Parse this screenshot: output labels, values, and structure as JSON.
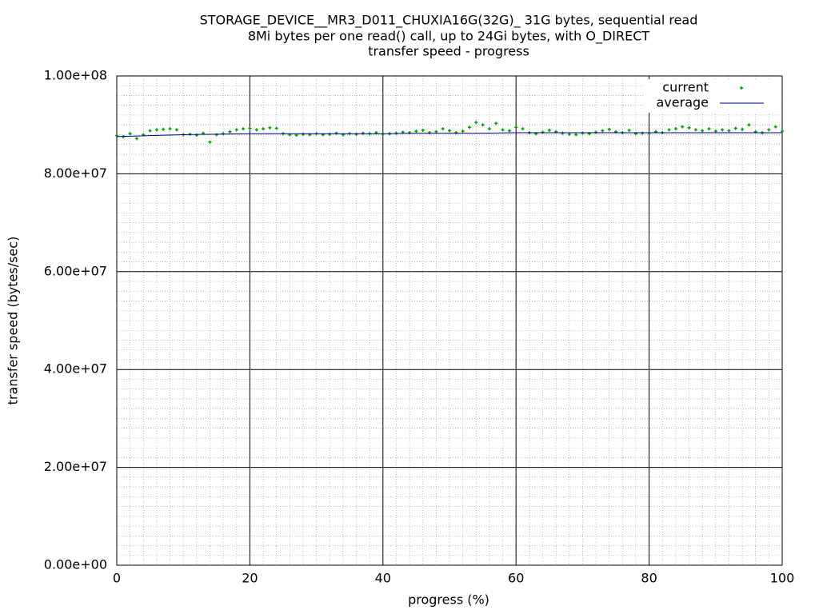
{
  "chart_data": {
    "type": "scatter",
    "title": "STORAGE_DEVICE__MR3_D011_CHUXIA16G(32G)_ 31G bytes, sequential read",
    "subtitle": "8Mi bytes per one read() call, up to 24Gi bytes, with O_DIRECT",
    "subtitle2": "transfer speed - progress",
    "x_label": "progress (%)",
    "y_label": "transfer speed (bytes/sec)",
    "xlim": [
      0,
      100
    ],
    "xticks": [
      0,
      20,
      40,
      60,
      80,
      100
    ],
    "ylim": [
      0,
      100000000
    ],
    "yticks": [
      {
        "value": 0,
        "label": "0.00e+00"
      },
      {
        "value": 20000000,
        "label": "2.00e+07"
      },
      {
        "value": 40000000,
        "label": "4.00e+07"
      },
      {
        "value": 60000000,
        "label": "6.00e+07"
      },
      {
        "value": 80000000,
        "label": "8.00e+07"
      },
      {
        "value": 100000000,
        "label": "1.00e+08"
      }
    ],
    "grid": true,
    "legend": "top-right",
    "series": [
      {
        "name": "current",
        "color": "#00a000",
        "style": "points",
        "x": [
          0,
          1,
          2,
          3,
          4,
          5,
          6,
          7,
          8,
          9,
          10,
          11,
          12,
          13,
          14,
          15,
          16,
          17,
          18,
          19,
          20,
          21,
          22,
          23,
          24,
          25,
          26,
          27,
          28,
          29,
          30,
          31,
          32,
          33,
          34,
          35,
          36,
          37,
          38,
          39,
          40,
          41,
          42,
          43,
          44,
          45,
          46,
          47,
          48,
          49,
          50,
          51,
          52,
          53,
          54,
          55,
          56,
          57,
          58,
          59,
          60,
          61,
          62,
          63,
          64,
          65,
          66,
          67,
          68,
          69,
          70,
          71,
          72,
          73,
          74,
          75,
          76,
          77,
          78,
          79,
          80,
          81,
          82,
          83,
          84,
          85,
          86,
          87,
          88,
          89,
          90,
          91,
          92,
          93,
          94,
          95,
          96,
          97,
          98,
          99,
          100
        ],
        "values": [
          87800000,
          87600000,
          88200000,
          87200000,
          88000000,
          88800000,
          89000000,
          89100000,
          89200000,
          89000000,
          88000000,
          88100000,
          87900000,
          88300000,
          86500000,
          88000000,
          88200000,
          88600000,
          89000000,
          89200000,
          89300000,
          89000000,
          89200000,
          89400000,
          89300000,
          88200000,
          88000000,
          87900000,
          88100000,
          88000000,
          88200000,
          88000000,
          88100000,
          88300000,
          88000000,
          88200000,
          88100000,
          88300000,
          88200000,
          88400000,
          88100000,
          88200000,
          88300000,
          88500000,
          88400000,
          88700000,
          88900000,
          88400000,
          88600000,
          89200000,
          88800000,
          88400000,
          88700000,
          89500000,
          90500000,
          90000000,
          89200000,
          90300000,
          89000000,
          88800000,
          89500000,
          89200000,
          88400000,
          88200000,
          88500000,
          88900000,
          88600000,
          88300000,
          88100000,
          88000000,
          88300000,
          88200000,
          88500000,
          88800000,
          89100000,
          88600000,
          88400000,
          88900000,
          88200000,
          88300000,
          88300000,
          88600000,
          88400000,
          89000000,
          89200000,
          89600000,
          89400000,
          89000000,
          88800000,
          89200000,
          88700000,
          89000000,
          88800000,
          89300000,
          89100000,
          90000000,
          88600000,
          88400000,
          89000000,
          89600000,
          88700000
        ]
      },
      {
        "name": "average",
        "color": "#000080",
        "style": "line",
        "x": [
          0,
          5,
          10,
          15,
          20,
          25,
          30,
          35,
          40,
          45,
          50,
          55,
          60,
          65,
          70,
          75,
          80,
          85,
          90,
          95,
          100
        ],
        "values": [
          87600000,
          87800000,
          88000000,
          88100000,
          88200000,
          88200000,
          88200000,
          88200000,
          88200000,
          88300000,
          88300000,
          88300000,
          88400000,
          88400000,
          88400000,
          88400000,
          88400000,
          88400000,
          88400000,
          88400000,
          88400000
        ]
      }
    ]
  }
}
